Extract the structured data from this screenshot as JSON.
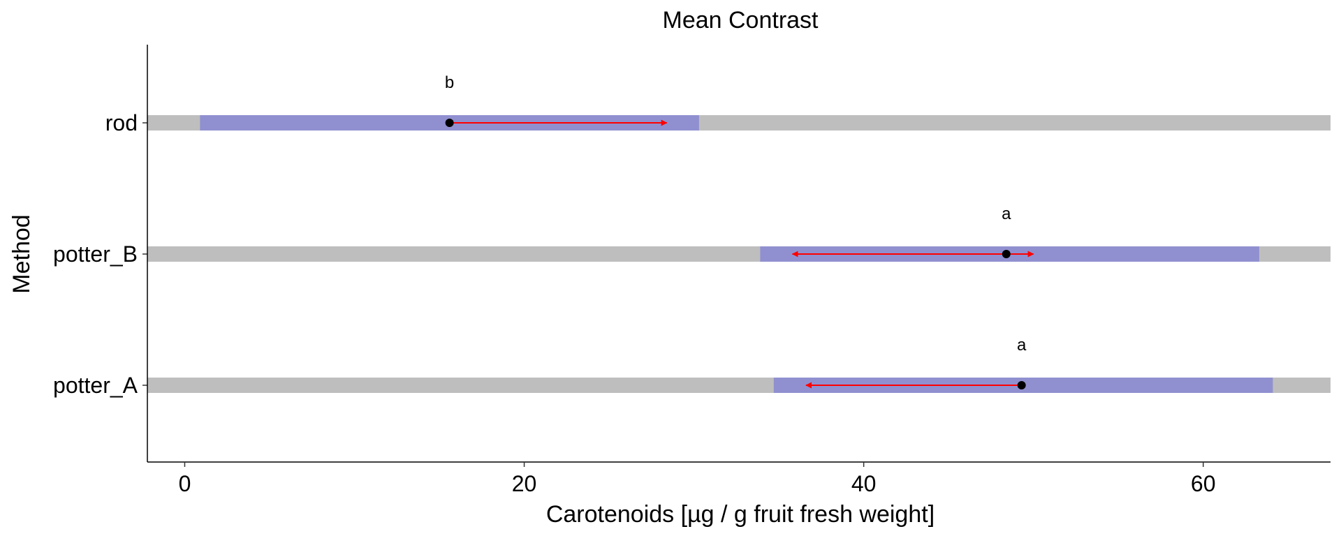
{
  "chart_data": {
    "type": "interval",
    "title": "Mean Contrast",
    "xlabel": "Carotenoids [µg / g fruit fresh weight]",
    "ylabel": "Method",
    "xlim": [
      -2.2,
      67.5
    ],
    "xticks": [
      0,
      20,
      40,
      60
    ],
    "grid": false,
    "categories": [
      "rod",
      "potter_B",
      "potter_A"
    ],
    "series": [
      {
        "category": "rod",
        "mean": 15.6,
        "ci": [
          0.9,
          30.3
        ],
        "comparison_low": 15.6,
        "comparison_high": 28.4,
        "letter": "b"
      },
      {
        "category": "potter_B",
        "mean": 48.4,
        "ci": [
          33.9,
          63.3
        ],
        "comparison_low": 35.8,
        "comparison_high": 50.0,
        "letter": "a"
      },
      {
        "category": "potter_A",
        "mean": 49.3,
        "ci": [
          34.7,
          64.1
        ],
        "comparison_low": 36.6,
        "comparison_high": 49.3,
        "letter": "a"
      }
    ],
    "colors": {
      "background_bar": "#bebebe",
      "ci_bar": "#9090d0",
      "arrow": "#ff0000",
      "mean_point": "#000000"
    }
  }
}
